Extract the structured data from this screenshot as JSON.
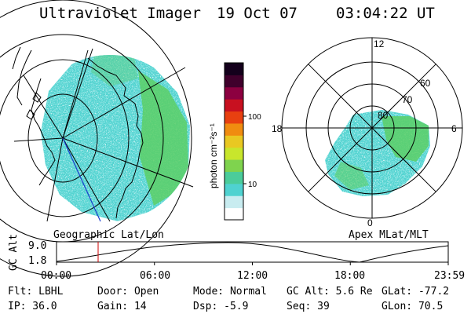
{
  "header": {
    "instrument": "Ultraviolet Imager",
    "date": "19 Oct 07",
    "time": "03:04:22 UT"
  },
  "left_panel": {
    "caption": "Geographic Lat/Lon"
  },
  "color_bar": {
    "unit_label": "photon cm⁻²s⁻¹",
    "ticks": [
      "100",
      "10"
    ],
    "scale": "log",
    "colors": [
      "#ffffff",
      "#c8ecf0",
      "#4fd2d0",
      "#4bcc9a",
      "#7fd34e",
      "#c8e62c",
      "#e9c822",
      "#f08c10",
      "#e84010",
      "#c81020",
      "#8c0040",
      "#40002c",
      "#14001c"
    ]
  },
  "right_panel": {
    "caption": "Apex MLat/MLT",
    "mlt_labels": {
      "top": "12",
      "left": "18",
      "right": "6",
      "bottom": "0"
    },
    "lat_labels": [
      "60",
      "70",
      "80"
    ]
  },
  "altitude_plot": {
    "ylabel": "GC Alt",
    "yticks": [
      "9.0",
      "1.8"
    ],
    "xticks": [
      "00:00",
      "06:00",
      "12:00",
      "18:00",
      "23:59"
    ],
    "marker_time": "03:04",
    "marker_color": "#cc0000"
  },
  "info": {
    "row1": {
      "filter": "Flt: LBHL",
      "door": "Door: Open",
      "mode": "Mode: Normal",
      "gc_alt": "GC Alt: 5.6 Re",
      "glat": "GLat: -77.2"
    },
    "row2": {
      "ip": "IP: 36.0",
      "gain": "Gain: 14",
      "dsp": "Dsp:   -5.9",
      "seq": "Seq: 39",
      "glon": "GLon:  70.5"
    }
  }
}
